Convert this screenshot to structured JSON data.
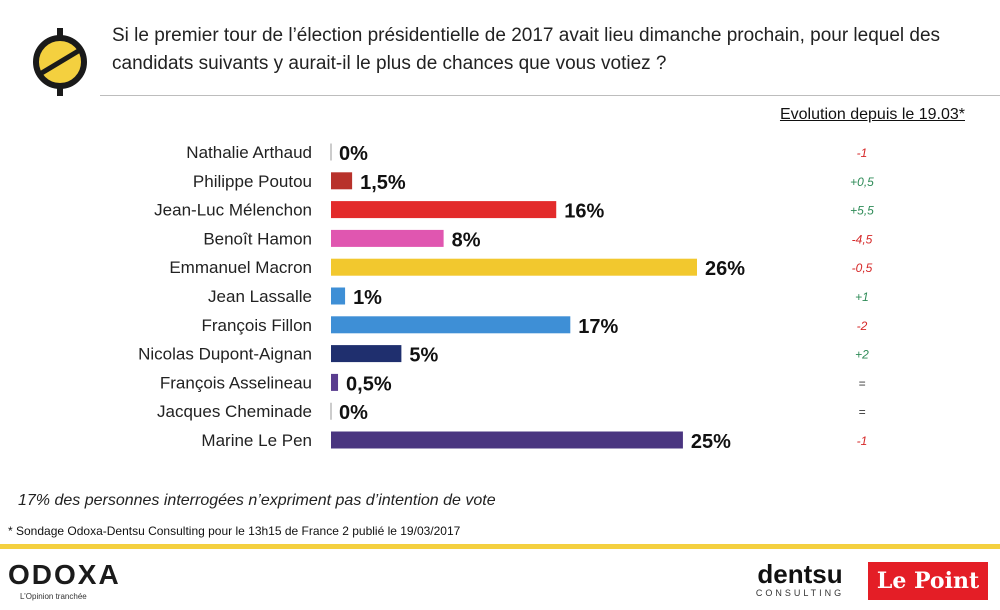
{
  "question": "Si le premier tour de l’élection présidentielle de 2017 avait lieu dimanche prochain, pour lequel des candidats suivants y aurait-il le plus de chances que vous votiez ?",
  "evolution_header": "Evolution depuis le 19.03*",
  "footnotes": {
    "intent": "17% des personnes interrogées n’expriment pas d’intention de vote",
    "source": "* Sondage Odoxa-Dentsu Consulting pour le 13h15 de France 2 publié le 19/03/2017"
  },
  "logos": {
    "odoxa_name": "ODOXA",
    "odoxa_tagline": "L’Opinion tranchée",
    "dentsu_name": "dentsu",
    "dentsu_sub": "CONSULTING",
    "lepoint_name": "Le Point"
  },
  "colors": {
    "brand_yellow": "#f4d03f",
    "positive": "#2e8b57",
    "negative": "#d62828",
    "neutral": "#333333"
  },
  "chart_data": {
    "type": "bar",
    "orientation": "horizontal",
    "categories": [
      "Nathalie Arthaud",
      "Philippe Poutou",
      "Jean-Luc Mélenchon",
      "Benoît Hamon",
      "Emmanuel Macron",
      "Jean Lassalle",
      "François Fillon",
      "Nicolas Dupont-Aignan",
      "François Asselineau",
      "Jacques Cheminade",
      "Marine Le Pen"
    ],
    "values": [
      0,
      1.5,
      16,
      8,
      26,
      1,
      17,
      5,
      0.5,
      0,
      25
    ],
    "value_labels": [
      "0%",
      "1,5%",
      "16%",
      "8%",
      "26%",
      "1%",
      "17%",
      "5%",
      "0,5%",
      "0%",
      "25%"
    ],
    "bar_colors": [
      "#b8322b",
      "#b8322b",
      "#e32b2b",
      "#e056b0",
      "#f2c82e",
      "#3e8fd6",
      "#3e8fd6",
      "#1f2f6e",
      "#5a3d8f",
      "#5a3d8f",
      "#4a3580"
    ],
    "evolution": [
      "-1",
      "+0,5",
      "+5,5",
      "-4,5",
      "-0,5",
      "+1",
      "-2",
      "+2",
      "=",
      "=",
      "-1"
    ],
    "xlim": [
      0,
      26
    ],
    "grid": false
  }
}
